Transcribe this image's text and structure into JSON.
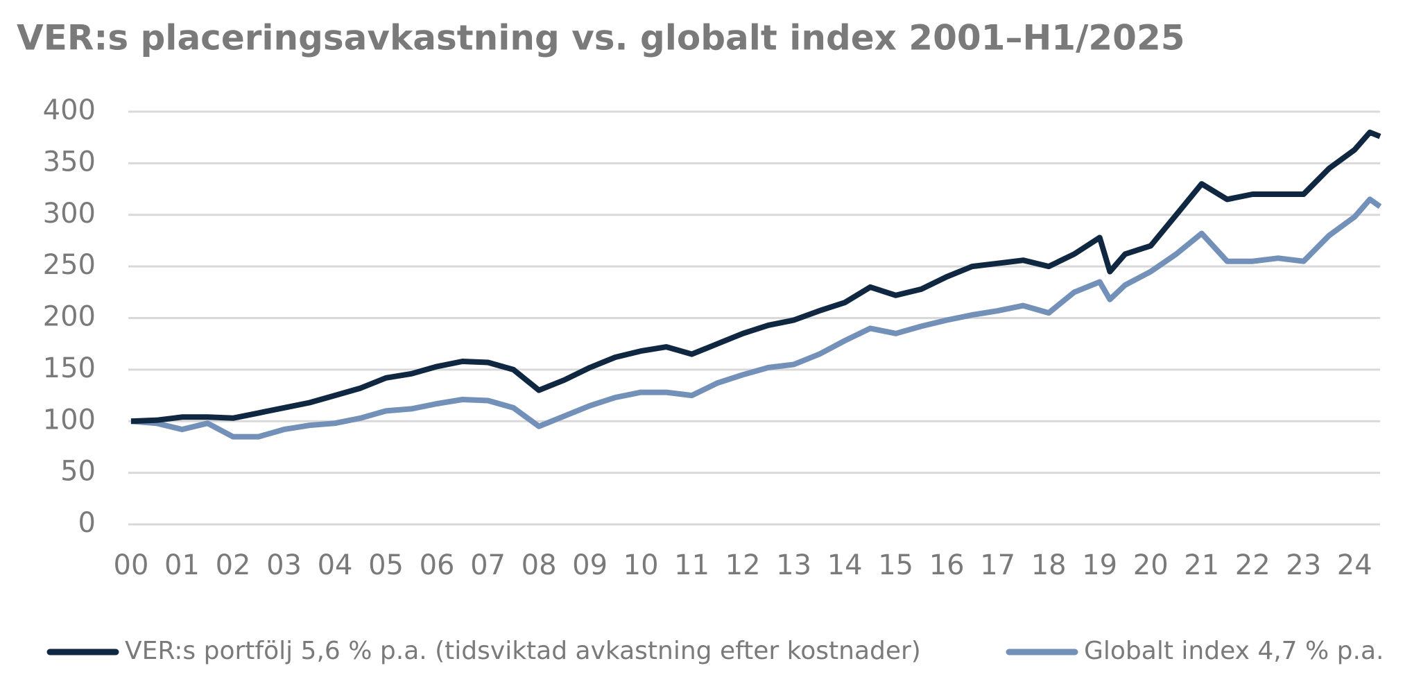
{
  "chart_data": {
    "type": "line",
    "title": "VER:s placeringsavkastning vs. globalt index 2001–H1/2025",
    "x": [
      0,
      0.5,
      1,
      1.5,
      2,
      2.5,
      3,
      3.5,
      4,
      4.5,
      5,
      5.5,
      6,
      6.5,
      7,
      7.5,
      8,
      8.5,
      9,
      9.5,
      10,
      10.5,
      11,
      11.5,
      12,
      12.5,
      13,
      13.5,
      14,
      14.5,
      15,
      15.5,
      16,
      16.5,
      17,
      17.5,
      18,
      18.5,
      19,
      19.2,
      19.5,
      20,
      20.5,
      21,
      21.5,
      22,
      22.5,
      23,
      23.5,
      24,
      24.3,
      24.5
    ],
    "series": [
      {
        "name": "VER:s portfölj 5,6 % p.a. (tidsviktad avkastning efter kostnader)",
        "color": "#0f2740",
        "values": [
          100,
          101,
          104,
          104,
          103,
          108,
          113,
          118,
          125,
          132,
          142,
          146,
          153,
          158,
          157,
          150,
          130,
          140,
          152,
          162,
          168,
          172,
          165,
          175,
          185,
          193,
          198,
          207,
          215,
          230,
          222,
          228,
          240,
          250,
          253,
          256,
          250,
          262,
          278,
          245,
          262,
          270,
          300,
          330,
          315,
          320,
          320,
          320,
          345,
          363,
          380,
          376
        ]
      },
      {
        "name": "Globalt index 4,7 % p.a.",
        "color": "#7391b8",
        "values": [
          100,
          98,
          92,
          98,
          85,
          85,
          92,
          96,
          98,
          103,
          110,
          112,
          117,
          121,
          120,
          113,
          95,
          105,
          115,
          123,
          128,
          128,
          125,
          137,
          145,
          152,
          155,
          165,
          178,
          190,
          185,
          192,
          198,
          203,
          207,
          212,
          205,
          225,
          235,
          218,
          232,
          245,
          262,
          282,
          255,
          255,
          258,
          255,
          280,
          298,
          315,
          308
        ]
      }
    ],
    "xlim": [
      0,
      24.5
    ],
    "xticks": [
      {
        "value": 0,
        "label": "00"
      },
      {
        "value": 1,
        "label": "01"
      },
      {
        "value": 2,
        "label": "02"
      },
      {
        "value": 3,
        "label": "03"
      },
      {
        "value": 4,
        "label": "04"
      },
      {
        "value": 5,
        "label": "05"
      },
      {
        "value": 6,
        "label": "06"
      },
      {
        "value": 7,
        "label": "07"
      },
      {
        "value": 8,
        "label": "08"
      },
      {
        "value": 9,
        "label": "09"
      },
      10,
      11,
      12,
      13,
      14,
      15,
      16,
      17,
      18,
      19,
      20,
      21,
      22,
      23,
      24
    ],
    "ylim": [
      0,
      400
    ],
    "yticks": [
      0,
      50,
      100,
      150,
      200,
      250,
      300,
      350,
      400
    ],
    "grid": true
  }
}
